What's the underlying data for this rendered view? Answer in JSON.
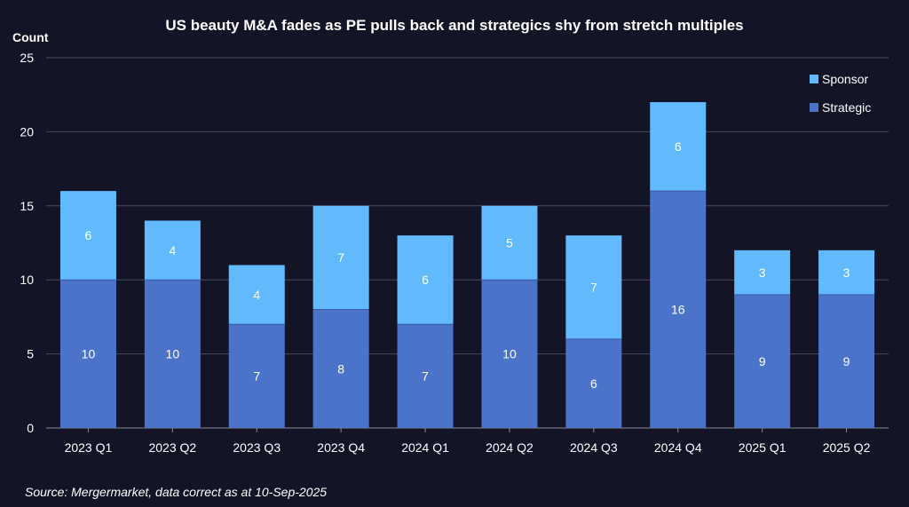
{
  "chart_data": {
    "type": "bar",
    "stacked": true,
    "title": "US beauty M&A fades as PE pulls back and strategics shy from stretch multiples",
    "ylabel": "Count",
    "xlabel": "",
    "ylim": [
      0,
      25
    ],
    "yticks": [
      0,
      5,
      10,
      15,
      20,
      25
    ],
    "grid": true,
    "legend_position": "top-right",
    "categories": [
      "2023 Q1",
      "2023 Q2",
      "2023 Q3",
      "2023 Q4",
      "2024 Q1",
      "2024 Q2",
      "2024 Q3",
      "2024 Q4",
      "2025 Q1",
      "2025 Q2"
    ],
    "series": [
      {
        "name": "Strategic",
        "color": "#4a73c9",
        "values": [
          10,
          10,
          7,
          8,
          7,
          10,
          6,
          16,
          9,
          9
        ]
      },
      {
        "name": "Sponsor",
        "color": "#62b9fb",
        "values": [
          6,
          4,
          4,
          7,
          6,
          5,
          7,
          6,
          3,
          3
        ]
      }
    ],
    "legend_order": [
      "Sponsor",
      "Strategic"
    ],
    "source": "Source: Mergermarket, data correct as at 10-Sep-2025"
  },
  "colors": {
    "background": "#141427",
    "grid": "#4a4a5e",
    "text": "#ffffff"
  }
}
